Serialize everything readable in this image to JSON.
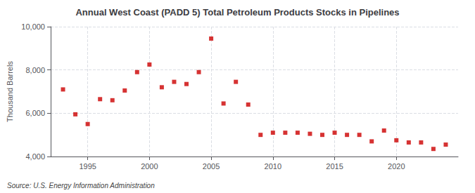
{
  "chart_data": {
    "type": "scatter",
    "title": "Annual West Coast (PADD 5) Total Petroleum Products Stocks in Pipelines",
    "ylabel": "Thousand Barrels",
    "source": "Source: U.S. Energy Information Administration",
    "x": [
      1993,
      1994,
      1995,
      1996,
      1997,
      1998,
      1999,
      2000,
      2001,
      2002,
      2003,
      2004,
      2005,
      2006,
      2007,
      2008,
      2009,
      2010,
      2011,
      2012,
      2013,
      2014,
      2015,
      2016,
      2017,
      2018,
      2019,
      2020,
      2021,
      2022,
      2023,
      2024
    ],
    "values": [
      7100,
      5950,
      5500,
      6650,
      6600,
      7050,
      7900,
      8250,
      7200,
      7450,
      7350,
      7900,
      9450,
      6450,
      7450,
      6400,
      5000,
      5100,
      5100,
      5100,
      5050,
      5000,
      5100,
      5000,
      5000,
      4700,
      5200,
      4750,
      4650,
      4650,
      4350,
      4550
    ],
    "color": "#cc0000",
    "marker": "square",
    "xlim": [
      1992,
      2025
    ],
    "xticks": [
      1995,
      2000,
      2005,
      2010,
      2015,
      2020
    ],
    "ylim": [
      4000,
      10000
    ],
    "yticks": [
      {
        "value": 4000,
        "label": "4,000"
      },
      {
        "value": 6000,
        "label": "6,000"
      },
      {
        "value": 8000,
        "label": "8,000"
      },
      {
        "value": 10000,
        "label": "10,000"
      }
    ],
    "grid": true
  }
}
